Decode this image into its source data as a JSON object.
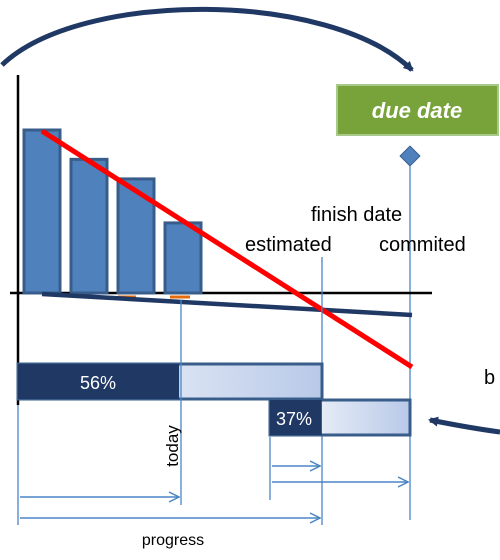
{
  "labels": {
    "due_date": "due date",
    "finish_date": "finish date",
    "estimated": "estimated",
    "committed": "commited",
    "today": "today",
    "progress": "progress",
    "cropped_b": "b"
  },
  "bars": {
    "progress_percent": 56,
    "progress_label": "56%",
    "remaining_percent": 37,
    "remaining_label": "37%"
  },
  "burndown_relative_heights": [
    1.0,
    0.82,
    0.7,
    0.43
  ],
  "colors": {
    "bar_fill": "#4f81bd",
    "bar_stroke": "#385d8a",
    "dark_navy": "#203864",
    "trend_red": "#ff0000",
    "due_green": "#77a33a",
    "gauge_light": "#c9d6ee",
    "dim_line": "#4a86c5"
  }
}
